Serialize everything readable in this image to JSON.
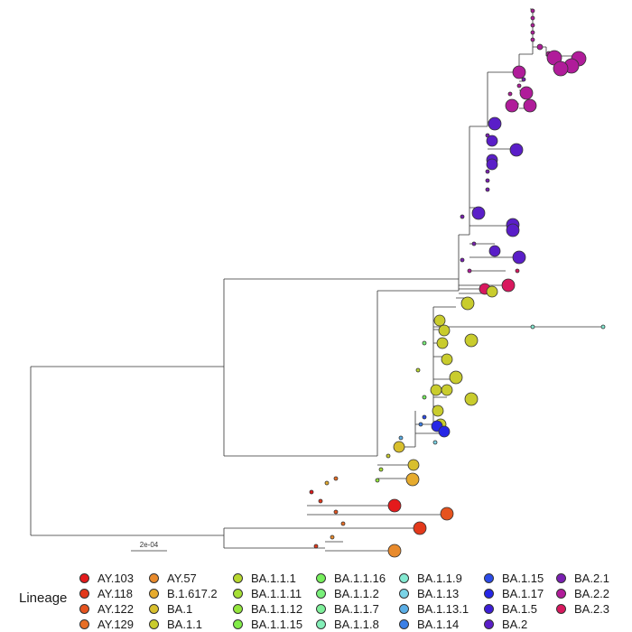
{
  "chart_data": {
    "type": "phylogenetic-tree",
    "scale_bar_label": "2e-04",
    "legend_title": "Lineage",
    "lineages": [
      {
        "name": "AY.103",
        "color": "#e41a1c"
      },
      {
        "name": "AY.118",
        "color": "#e3391b"
      },
      {
        "name": "AY.122",
        "color": "#e6531e"
      },
      {
        "name": "AY.129",
        "color": "#e86e25"
      },
      {
        "name": "AY.57",
        "color": "#e88a2c"
      },
      {
        "name": "B.1.617.2",
        "color": "#e6ab2e"
      },
      {
        "name": "BA.1",
        "color": "#d8bf2d"
      },
      {
        "name": "BA.1.1",
        "color": "#c9cc2d"
      },
      {
        "name": "BA.1.1.1",
        "color": "#b8d82f"
      },
      {
        "name": "BA.1.1.11",
        "color": "#a6df35"
      },
      {
        "name": "BA.1.1.12",
        "color": "#94e63d"
      },
      {
        "name": "BA.1.1.15",
        "color": "#82ec48"
      },
      {
        "name": "BA.1.1.16",
        "color": "#76ef5c"
      },
      {
        "name": "BA.1.1.2",
        "color": "#79f07a"
      },
      {
        "name": "BA.1.1.7",
        "color": "#7ef09a"
      },
      {
        "name": "BA.1.1.8",
        "color": "#84efb8"
      },
      {
        "name": "BA.1.1.9",
        "color": "#84ead2"
      },
      {
        "name": "BA.1.13",
        "color": "#7ad3e6"
      },
      {
        "name": "BA.1.13.1",
        "color": "#5aaee6"
      },
      {
        "name": "BA.1.14",
        "color": "#3b7fe6"
      },
      {
        "name": "BA.1.15",
        "color": "#2b4be8"
      },
      {
        "name": "BA.1.17",
        "color": "#2626e6"
      },
      {
        "name": "BA.1.5",
        "color": "#3c1ed6"
      },
      {
        "name": "BA.2",
        "color": "#5a1ec8"
      },
      {
        "name": "BA.2.1",
        "color": "#7a1fb2"
      },
      {
        "name": "BA.2.2",
        "color": "#b01c9a"
      },
      {
        "name": "BA.2.3",
        "color": "#d8185e"
      }
    ]
  }
}
